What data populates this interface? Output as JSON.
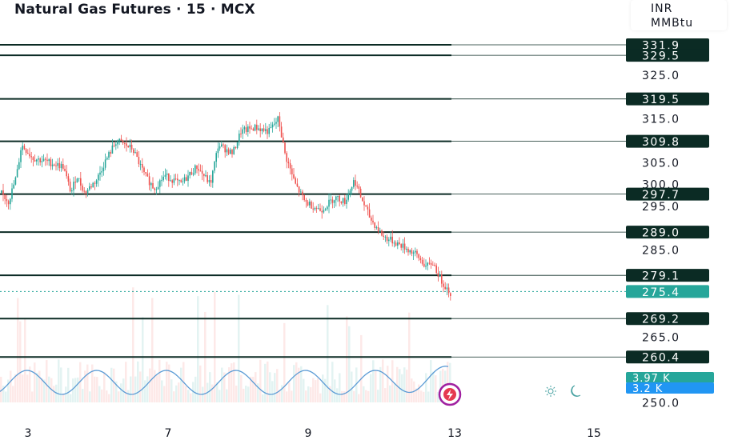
{
  "header": {
    "title": "Natural Gas Futures · 15 · MCX",
    "currency": "INR",
    "unit": "MMBtu"
  },
  "colors": {
    "up": "#26a69a",
    "down": "#ef5350",
    "level_line": "#0b2b24",
    "level_badge": "#0b2b24",
    "last_badge": "#26a69a",
    "oscillator": "#5b9bd5",
    "volume_badge": "#26a69a",
    "volume_avg_badge": "#2196f3"
  },
  "chart_data": {
    "type": "candlestick",
    "title": "Natural Gas Futures · 15 · MCX",
    "y_axis": {
      "min": 250,
      "max": 335,
      "ticks": [
        "325.0",
        "315.0",
        "305.0",
        "300.0",
        "295.0",
        "285.0",
        "265.0",
        "250.0"
      ]
    },
    "x_axis": {
      "tick_labels": [
        "3",
        "7",
        "9",
        "13",
        "15"
      ]
    },
    "price_levels": [
      331.9,
      329.5,
      319.5,
      309.8,
      297.7,
      289.0,
      279.1,
      269.2,
      260.4
    ],
    "price_level_labels": [
      "331.9",
      "329.5",
      "319.5",
      "309.8",
      "297.7",
      "289.0",
      "279.1",
      "269.2",
      "260.4"
    ],
    "last_price": 275.4,
    "last_price_label": "275.4",
    "volume_labels": [
      "3.97 K",
      "3.2 K"
    ],
    "price_path": [
      {
        "x": 0,
        "y": 298
      },
      {
        "x": 10,
        "y": 296
      },
      {
        "x": 20,
        "y": 302
      },
      {
        "x": 26,
        "y": 309
      },
      {
        "x": 40,
        "y": 306
      },
      {
        "x": 60,
        "y": 305
      },
      {
        "x": 78,
        "y": 304
      },
      {
        "x": 88,
        "y": 298
      },
      {
        "x": 95,
        "y": 302
      },
      {
        "x": 105,
        "y": 298
      },
      {
        "x": 120,
        "y": 301
      },
      {
        "x": 130,
        "y": 305
      },
      {
        "x": 145,
        "y": 310
      },
      {
        "x": 165,
        "y": 308
      },
      {
        "x": 180,
        "y": 302
      },
      {
        "x": 192,
        "y": 299
      },
      {
        "x": 205,
        "y": 302
      },
      {
        "x": 225,
        "y": 300
      },
      {
        "x": 245,
        "y": 304
      },
      {
        "x": 262,
        "y": 300
      },
      {
        "x": 272,
        "y": 309
      },
      {
        "x": 290,
        "y": 307
      },
      {
        "x": 300,
        "y": 312
      },
      {
        "x": 318,
        "y": 313
      },
      {
        "x": 335,
        "y": 312
      },
      {
        "x": 347,
        "y": 315
      },
      {
        "x": 355,
        "y": 307
      },
      {
        "x": 368,
        "y": 300
      },
      {
        "x": 380,
        "y": 296
      },
      {
        "x": 400,
        "y": 294
      },
      {
        "x": 418,
        "y": 297
      },
      {
        "x": 430,
        "y": 296
      },
      {
        "x": 442,
        "y": 301
      },
      {
        "x": 450,
        "y": 297
      },
      {
        "x": 462,
        "y": 292
      },
      {
        "x": 478,
        "y": 288
      },
      {
        "x": 500,
        "y": 286
      },
      {
        "x": 518,
        "y": 284
      },
      {
        "x": 532,
        "y": 281
      },
      {
        "x": 540,
        "y": 282
      },
      {
        "x": 550,
        "y": 278
      },
      {
        "x": 562,
        "y": 275
      }
    ]
  }
}
